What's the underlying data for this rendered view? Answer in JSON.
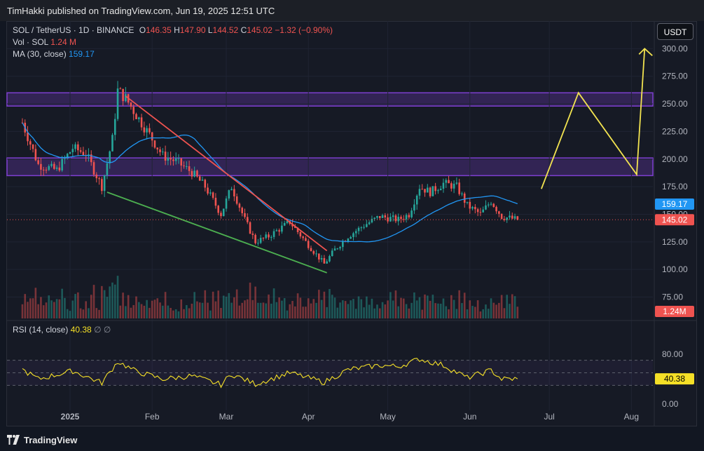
{
  "header": {
    "published": "TimHakki published on TradingView.com, Jun 19, 2025 12:51 UTC"
  },
  "legend": {
    "symbol": "SOL / TetherUS · 1D · BINANCE",
    "o_label": "O",
    "o_val": "146.35",
    "h_label": "H",
    "h_val": "147.90",
    "l_label": "L",
    "l_val": "144.52",
    "c_label": "C",
    "c_val": "145.02",
    "change": "−1.32 (−0.90%)",
    "vol_label": "Vol · SOL",
    "vol_val": "1.24 M",
    "ma_label": "MA (30, close)",
    "ma_val": "159.17"
  },
  "currency_button": "USDT",
  "rsi_legend": {
    "label": "RSI (14, close)",
    "value": "40.38",
    "icons": "∅ ∅"
  },
  "footer": {
    "brand": "TradingView"
  },
  "colors": {
    "up": "#26a69a",
    "down": "#ef5350",
    "ma": "#2196f3",
    "rsi": "#f5e027",
    "zone": "#7e3fd1",
    "resistance": "#ef5350",
    "support": "#4caf50",
    "projection": "#f2e350"
  },
  "chart_data": {
    "type": "candlestick",
    "symbol": "SOL / TetherUS",
    "timeframe": "1D",
    "exchange": "BINANCE",
    "price_axis": {
      "ticks": [
        75,
        100,
        125,
        150,
        175,
        200,
        225,
        250,
        275,
        300
      ],
      "range": [
        55,
        325
      ]
    },
    "time_axis": [
      "2025",
      "Feb",
      "Mar",
      "Apr",
      "May",
      "Jun",
      "Jul",
      "Aug"
    ],
    "price_path": [
      [
        "2024-12-14",
        233
      ],
      [
        "2024-12-20",
        195
      ],
      [
        "2024-12-27",
        190
      ],
      [
        "2025-01-02",
        210
      ],
      [
        "2025-01-07",
        205
      ],
      [
        "2025-01-13",
        175
      ],
      [
        "2025-01-17",
        218
      ],
      [
        "2025-01-19",
        262
      ],
      [
        "2025-01-22",
        255
      ],
      [
        "2025-01-26",
        240
      ],
      [
        "2025-01-31",
        222
      ],
      [
        "2025-02-05",
        203
      ],
      [
        "2025-02-10",
        198
      ],
      [
        "2025-02-16",
        188
      ],
      [
        "2025-02-21",
        175
      ],
      [
        "2025-02-27",
        150
      ],
      [
        "2025-03-03",
        175
      ],
      [
        "2025-03-08",
        145
      ],
      [
        "2025-03-12",
        125
      ],
      [
        "2025-03-17",
        130
      ],
      [
        "2025-03-25",
        143
      ],
      [
        "2025-03-31",
        125
      ],
      [
        "2025-04-07",
        105
      ],
      [
        "2025-04-11",
        118
      ],
      [
        "2025-04-16",
        130
      ],
      [
        "2025-04-22",
        140
      ],
      [
        "2025-04-28",
        148
      ],
      [
        "2025-05-05",
        145
      ],
      [
        "2025-05-09",
        150
      ],
      [
        "2025-05-13",
        175
      ],
      [
        "2025-05-17",
        170
      ],
      [
        "2025-05-22",
        178
      ],
      [
        "2025-05-27",
        175
      ],
      [
        "2025-05-31",
        158
      ],
      [
        "2025-06-05",
        150
      ],
      [
        "2025-06-09",
        162
      ],
      [
        "2025-06-13",
        148
      ],
      [
        "2025-06-19",
        145.02
      ]
    ],
    "last_close": 145.02,
    "ma30_last": 159.17,
    "volume_last": "1.24M",
    "zones": [
      [
        248,
        260
      ],
      [
        185,
        201
      ]
    ],
    "trendlines": {
      "resistance": [
        [
          "2025-01-22",
          257
        ],
        [
          "2025-04-08",
          117
        ]
      ],
      "support": [
        [
          "2025-01-15",
          170
        ],
        [
          "2025-04-08",
          97
        ]
      ]
    },
    "projection": [
      [
        "2025-06-28",
        173
      ],
      [
        "2025-07-12",
        260
      ],
      [
        "2025-08-03",
        186
      ],
      [
        "2025-08-06",
        300
      ]
    ],
    "rsi": {
      "name": "RSI (14, close)",
      "last": 40.38,
      "levels": [
        70,
        50,
        30
      ],
      "ticks": [
        0,
        40,
        80
      ],
      "range": [
        -10,
        110
      ],
      "path": [
        [
          "2024-12-14",
          55
        ],
        [
          "2024-12-20",
          40
        ],
        [
          "2025-01-02",
          53
        ],
        [
          "2025-01-13",
          34
        ],
        [
          "2025-01-19",
          68
        ],
        [
          "2025-01-26",
          52
        ],
        [
          "2025-02-05",
          40
        ],
        [
          "2025-02-16",
          45
        ],
        [
          "2025-02-27",
          31
        ],
        [
          "2025-03-03",
          48
        ],
        [
          "2025-03-12",
          32
        ],
        [
          "2025-03-25",
          50
        ],
        [
          "2025-04-07",
          35
        ],
        [
          "2025-04-16",
          55
        ],
        [
          "2025-04-28",
          62
        ],
        [
          "2025-05-05",
          60
        ],
        [
          "2025-05-13",
          72
        ],
        [
          "2025-05-22",
          62
        ],
        [
          "2025-05-31",
          42
        ],
        [
          "2025-06-09",
          54
        ],
        [
          "2025-06-13",
          40
        ],
        [
          "2025-06-19",
          40.38
        ]
      ]
    }
  }
}
